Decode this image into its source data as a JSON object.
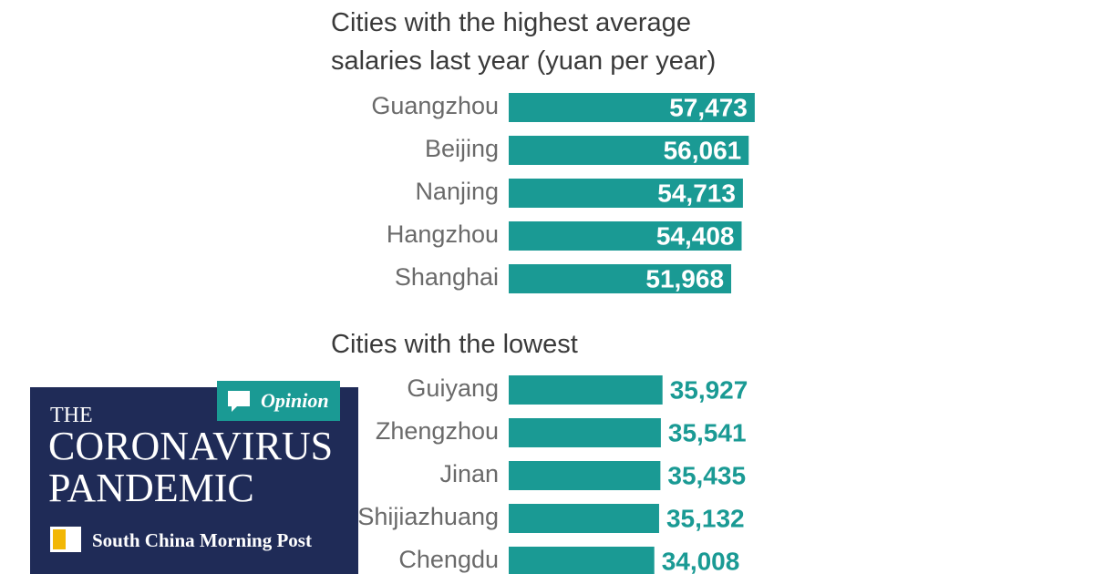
{
  "chart_data": [
    {
      "type": "bar",
      "orientation": "horizontal",
      "title": "Cities with the highest average salaries last year (yuan per year)",
      "categories": [
        "Guangzhou",
        "Beijing",
        "Nanjing",
        "Hangzhou",
        "Shanghai"
      ],
      "values": [
        57473,
        56061,
        54713,
        54408,
        51968
      ],
      "value_labels": [
        "57,473",
        "56,061",
        "54,713",
        "54,408",
        "51,968"
      ],
      "color": "#1a9a94",
      "label_position": "inside",
      "label_color": "#ffffff"
    },
    {
      "type": "bar",
      "orientation": "horizontal",
      "title": "Cities with the lowest",
      "categories": [
        "Guiyang",
        "Zhengzhou",
        "Jinan",
        "Shijiazhuang",
        "Chengdu"
      ],
      "values": [
        35927,
        35541,
        35435,
        35132,
        34008
      ],
      "value_labels": [
        "35,927",
        "35,541",
        "35,435",
        "35,132",
        "34,008"
      ],
      "color": "#1a9a94",
      "label_position": "outside",
      "label_color": "#1a9a94"
    }
  ],
  "badge": {
    "tag": "Opinion",
    "kicker": "THE",
    "title": "CORONAVIRUS PANDEMIC",
    "brand": "South China Morning Post"
  }
}
